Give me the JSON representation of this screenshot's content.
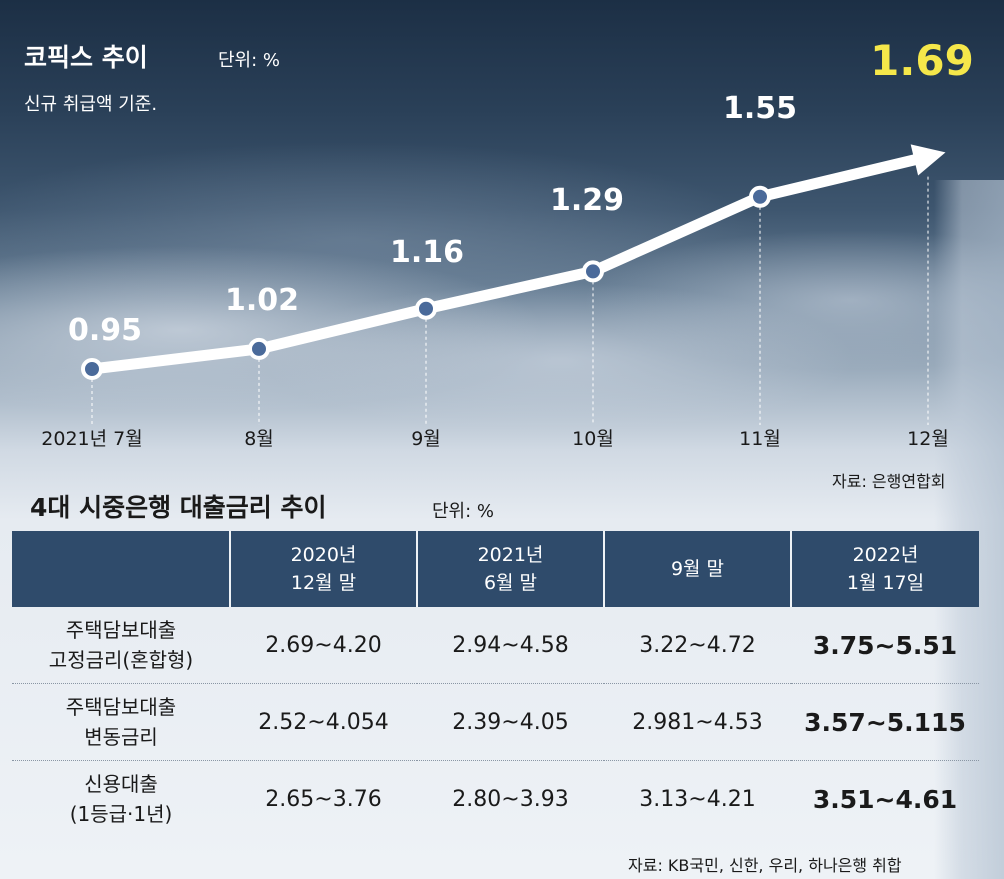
{
  "chart_data": {
    "type": "line",
    "title": "코픽스 추이",
    "unit": "단위: %",
    "subtitle": "신규 취급액 기준.",
    "categories": [
      "2021년 7월",
      "8월",
      "9월",
      "10월",
      "11월",
      "12월"
    ],
    "values": [
      0.95,
      1.02,
      1.16,
      1.29,
      1.55,
      1.69
    ],
    "value_labels": [
      "0.95",
      "1.02",
      "1.16",
      "1.29",
      "1.55",
      "1.69"
    ],
    "source": "자료: 은행연합회",
    "grid": false,
    "colors": {
      "line": "#ffffff",
      "marker": "#4a6a9a",
      "highlight": "#f5e74a"
    }
  },
  "table": {
    "title": "4대 시중은행 대출금리 추이",
    "unit": "단위: %",
    "headers": [
      {
        "line1": "",
        "line2": ""
      },
      {
        "line1": "2020년",
        "line2": "12월 말"
      },
      {
        "line1": "2021년",
        "line2": "6월 말"
      },
      {
        "line1": "9월 말",
        "line2": ""
      },
      {
        "line1": "2022년",
        "line2": "1월 17일"
      }
    ],
    "rows": [
      {
        "name1": "주택담보대출",
        "name2": "고정금리(혼합형)",
        "values": [
          "2.69~4.20",
          "2.94~4.58",
          "3.22~4.72",
          "3.75~5.51"
        ]
      },
      {
        "name1": "주택담보대출",
        "name2": "변동금리",
        "values": [
          "2.52~4.054",
          "2.39~4.05",
          "2.981~4.53",
          "3.57~5.115"
        ]
      },
      {
        "name1": "신용대출",
        "name2": "(1등급·1년)",
        "values": [
          "2.65~3.76",
          "2.80~3.93",
          "3.13~4.21",
          "3.51~4.61"
        ]
      }
    ],
    "source": "자료: KB국민, 신한, 우리, 하나은행 취합",
    "colors": {
      "header_bg": "#2f4b6b"
    }
  }
}
